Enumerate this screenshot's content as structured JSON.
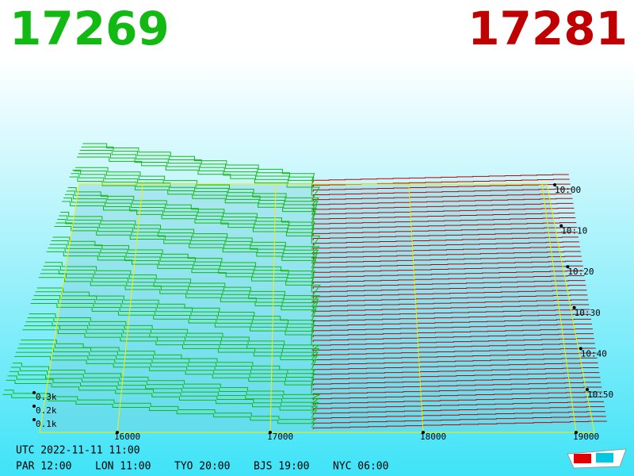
{
  "bid": {
    "price": 17269,
    "color": "#13b913"
  },
  "ask": {
    "price": 17281,
    "color": "#c00000"
  },
  "price_axis": {
    "ticks": [
      16000,
      17000,
      18000,
      19000
    ]
  },
  "time_axis": {
    "ticks": [
      "10:00",
      "10:10",
      "10:20",
      "10:30",
      "10:40",
      "10:50"
    ]
  },
  "depth_axis": {
    "ticks": [
      {
        "value": 300,
        "label": "0.3k"
      },
      {
        "value": 200,
        "label": "0.2k"
      },
      {
        "value": 100,
        "label": "0.1k"
      }
    ]
  },
  "footer": {
    "utc": "UTC 2022-11-11 11:00",
    "cities": [
      "PAR 12:00",
      "LON 11:00",
      "TYO 20:00",
      "BJS 19:00",
      "NYC 06:00"
    ]
  }
}
